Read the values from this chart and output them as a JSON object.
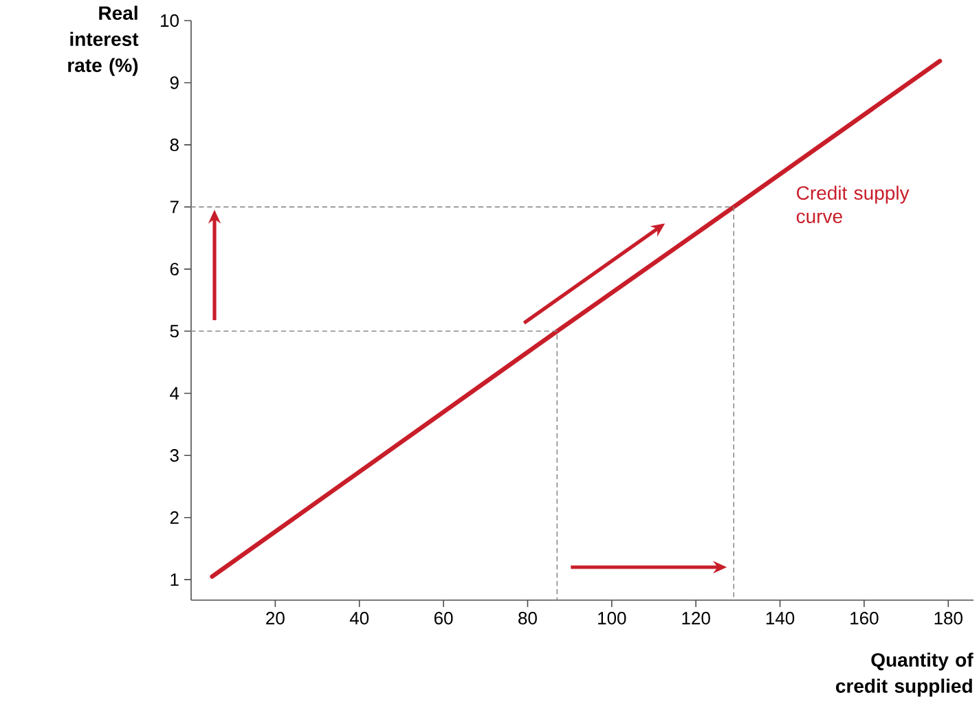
{
  "chart_data": {
    "type": "line",
    "xlabel": "Quantity of credit supplied",
    "ylabel": "Real interest rate (%)",
    "xlim": [
      0,
      186
    ],
    "ylim": [
      0.67,
      10
    ],
    "xticks": [
      20,
      40,
      60,
      80,
      100,
      120,
      140,
      160,
      180
    ],
    "yticks": [
      1,
      2,
      3,
      4,
      5,
      6,
      7,
      8,
      9,
      10
    ],
    "grid": false,
    "legend": false,
    "marker": "none",
    "series": [
      {
        "name": "Credit supply curve",
        "color": "#c81e2a",
        "line_style": "solid",
        "x": [
          5,
          87,
          129,
          178
        ],
        "values": [
          1.05,
          5,
          7,
          9.35
        ]
      },
      {
        "color": "#8a8a8a",
        "line_style": "dashed",
        "x": [
          0,
          87,
          87
        ],
        "values": [
          5,
          5,
          0.67
        ]
      },
      {
        "color": "#8a8a8a",
        "line_style": "dashed",
        "x": [
          0,
          129,
          129
        ],
        "values": [
          7,
          7,
          0.67
        ]
      }
    ]
  }
}
